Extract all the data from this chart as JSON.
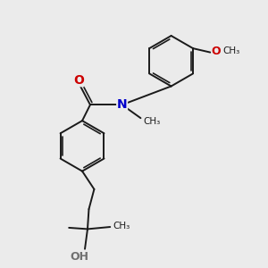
{
  "background_color": "#ebebeb",
  "bond_color": "#1a1a1a",
  "oxygen_color": "#cc0000",
  "nitrogen_color": "#0000cc",
  "hydrogen_color": "#707070",
  "figsize": [
    3.0,
    3.0
  ],
  "dpi": 100,
  "xlim": [
    0,
    10
  ],
  "ylim": [
    0,
    10
  ]
}
